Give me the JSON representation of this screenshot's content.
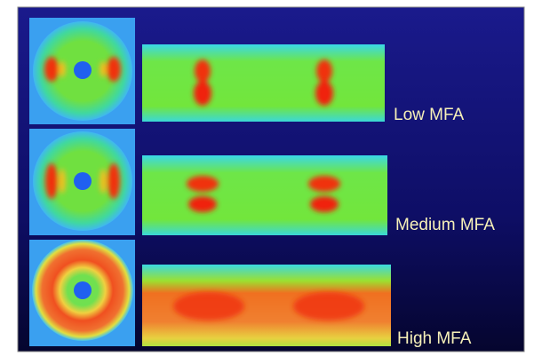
{
  "rows": [
    {
      "label": "Low MFA"
    },
    {
      "label": "Medium MFA"
    },
    {
      "label": "High MFA"
    }
  ]
}
